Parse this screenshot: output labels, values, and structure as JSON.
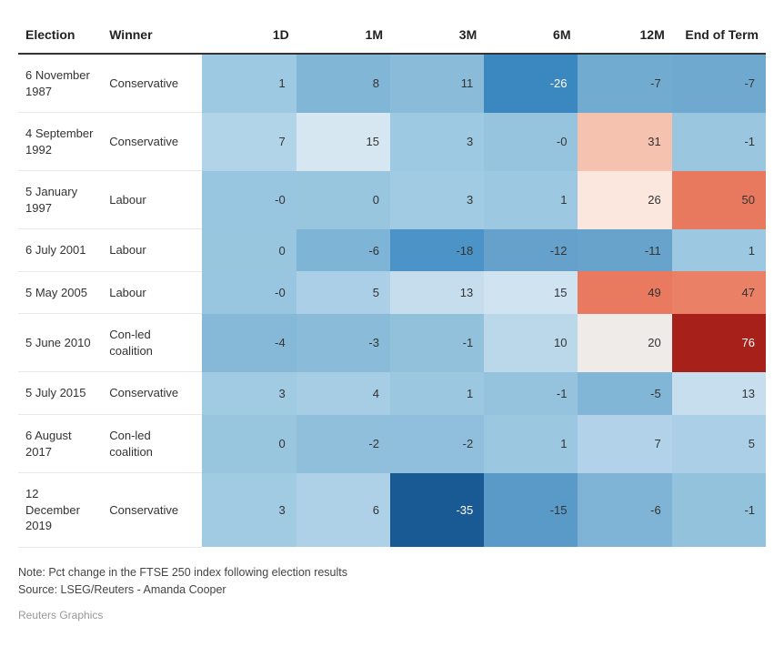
{
  "heatmap": {
    "type": "heatmap-table",
    "columns": [
      "Election",
      "Winner",
      "1D",
      "1M",
      "3M",
      "6M",
      "12M",
      "End of Term"
    ],
    "label_columns_count": 2,
    "rows": [
      {
        "election": "6 November 1987",
        "winner": "Conservative",
        "values": [
          1,
          8,
          11,
          -26,
          -7,
          -7
        ],
        "colors": [
          "#9ec9e2",
          "#81b6d7",
          "#8abbd9",
          "#3b87c0",
          "#72abd0",
          "#6fa9cf"
        ]
      },
      {
        "election": "4 September 1992",
        "winner": "Conservative",
        "values": [
          7,
          15,
          3,
          "-0",
          31,
          -1
        ],
        "colors": [
          "#b1d4e8",
          "#d6e7f2",
          "#9dc9e2",
          "#96c3de",
          "#f5c2af",
          "#9ac6e0"
        ]
      },
      {
        "election": "5 January 1997",
        "winner": "Labour",
        "values": [
          "-0",
          0,
          3,
          1,
          26,
          50
        ],
        "colors": [
          "#98c5df",
          "#99c6df",
          "#a1cae3",
          "#9cc8e1",
          "#fbe7de",
          "#e8795f"
        ]
      },
      {
        "election": "6 July 2001",
        "winner": "Labour",
        "values": [
          0,
          -6,
          -18,
          -12,
          -11,
          1
        ],
        "colors": [
          "#99c6df",
          "#7eb4d6",
          "#4c94c7",
          "#65a1cb",
          "#68a3cc",
          "#9dc8e1"
        ]
      },
      {
        "election": "5 May 2005",
        "winner": "Labour",
        "values": [
          "-0",
          5,
          13,
          15,
          49,
          47
        ],
        "colors": [
          "#98c5df",
          "#aacfe6",
          "#c6dded",
          "#d0e3f0",
          "#e97a60",
          "#ea8167"
        ]
      },
      {
        "election": "5 June 2010",
        "winner": "Con-led coalition",
        "values": [
          -4,
          -3,
          -1,
          10,
          20,
          76
        ],
        "colors": [
          "#86b9d8",
          "#8abcd9",
          "#92c1dc",
          "#bbd8eb",
          "#eeebe9",
          "#a8201a"
        ]
      },
      {
        "election": "5 July 2015",
        "winner": "Conservative",
        "values": [
          3,
          4,
          1,
          -1,
          -5,
          13
        ],
        "colors": [
          "#a1cbe3",
          "#a6cde4",
          "#9bc7e1",
          "#95c3de",
          "#82b6d7",
          "#c6deed"
        ]
      },
      {
        "election": "6 August 2017",
        "winner": "Con-led coalition",
        "values": [
          0,
          -2,
          -2,
          1,
          7,
          5
        ],
        "colors": [
          "#99c6df",
          "#90bfdc",
          "#8fbfdc",
          "#9bc7e1",
          "#b1d2e8",
          "#aacfe6"
        ]
      },
      {
        "election": "12 December 2019",
        "winner": "Conservative",
        "values": [
          3,
          6,
          -35,
          -15,
          -6,
          -1
        ],
        "colors": [
          "#a1cbe3",
          "#aed1e7",
          "#1a5a94",
          "#5a9ac8",
          "#7fb4d6",
          "#93c2dd"
        ]
      }
    ],
    "header_text_color": "#222222",
    "label_text_color": "#333333",
    "cell_text_color_light": "#ffffff",
    "cell_text_color_dark": "#333333",
    "cell_fontsize": 13,
    "header_fontsize": 14,
    "row_divider_color": "#e8e8e8",
    "header_border_color": "#333333",
    "background_color": "#ffffff"
  },
  "footnote1": "Note: Pct change in the FTSE 250 index following election results",
  "footnote2": "Source: LSEG/Reuters - Amanda Cooper",
  "credit": "Reuters Graphics"
}
